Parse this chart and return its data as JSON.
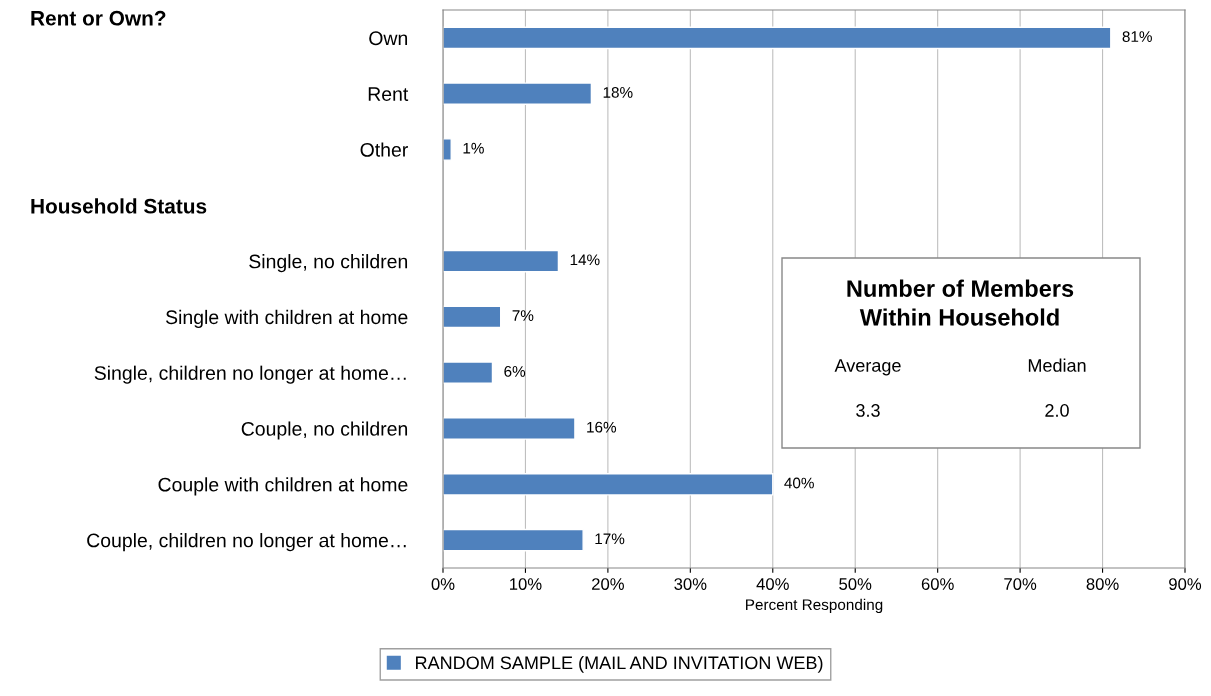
{
  "chart_data": {
    "type": "bar",
    "orientation": "horizontal",
    "categories": [
      "Own",
      "Rent",
      "Other",
      null,
      "Single, no children",
      "Single with children at home",
      "Single, children no longer at home…",
      "Couple, no children",
      "Couple with children at home",
      "Couple, children no longer at home…"
    ],
    "series": [
      {
        "name": "RANDOM SAMPLE (MAIL AND INVITATION WEB)",
        "color": "#4f81bd",
        "values": [
          81,
          18,
          1,
          null,
          14,
          7,
          6,
          16,
          40,
          17
        ],
        "value_labels": [
          "81%",
          "18%",
          "1%",
          null,
          "14%",
          "7%",
          "6%",
          "16%",
          "40%",
          "17%"
        ]
      }
    ],
    "xlabel": "Percent Responding",
    "xlim": [
      0,
      90
    ],
    "xticks": [
      {
        "value": 0,
        "label": "0%"
      },
      {
        "value": 10,
        "label": "10%"
      },
      {
        "value": 20,
        "label": "20%"
      },
      {
        "value": 30,
        "label": "30%"
      },
      {
        "value": 40,
        "label": "40%"
      },
      {
        "value": 50,
        "label": "50%"
      },
      {
        "value": 60,
        "label": "60%"
      },
      {
        "value": 70,
        "label": "70%"
      },
      {
        "value": 80,
        "label": "80%"
      },
      {
        "value": 90,
        "label": "90%"
      }
    ],
    "grid": "x",
    "legend": "bottom",
    "annotations": [
      "Rent or Own?",
      "Household Status",
      "Number of Members\nWithin Household",
      "Average",
      "Median",
      "3.3",
      "2.0"
    ]
  }
}
